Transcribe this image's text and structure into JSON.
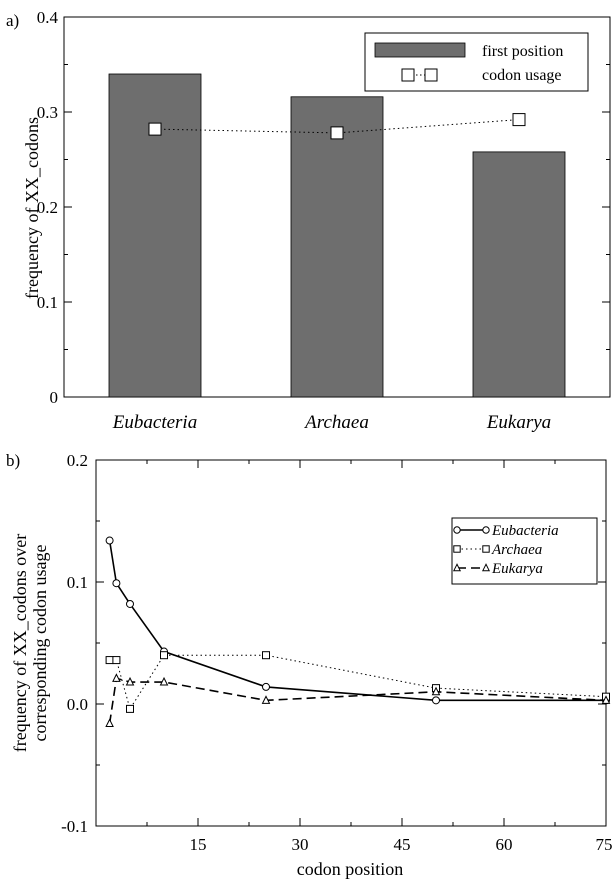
{
  "chart_data": [
    {
      "panel_label": "a)",
      "type": "bar",
      "categories": [
        "Eubacteria",
        "Archaea",
        "Eukarya"
      ],
      "series": [
        {
          "name": "first position",
          "kind": "bar",
          "values": [
            0.34,
            0.316,
            0.258
          ]
        },
        {
          "name": "codon usage",
          "kind": "line-dotted-square",
          "values": [
            0.282,
            0.278,
            0.292
          ]
        }
      ],
      "ylabel": "frequency of XX_codons",
      "xlabel": "",
      "ylim": [
        0,
        0.4
      ],
      "yticks": [
        "0",
        "0.1",
        "0.2",
        "0.3",
        "0.4"
      ],
      "legend": "top-right",
      "colors": {
        "bar": "#6e6e6e",
        "line": "#000000"
      }
    },
    {
      "panel_label": "b)",
      "type": "line",
      "xlabel": "codon position",
      "ylabel_lines": [
        "frequency of XX_codons over",
        "corresponding codon usage"
      ],
      "xlim": [
        0,
        75
      ],
      "ylim": [
        -0.1,
        0.2
      ],
      "xticks": [
        "15",
        "30",
        "45",
        "60",
        "75"
      ],
      "yticks": [
        "-0.1",
        "0.0",
        "0.1",
        "0.2"
      ],
      "legend": "top-right",
      "series": [
        {
          "name": "Eubacteria",
          "marker": "circle",
          "dash": "solid",
          "x": [
            2,
            3,
            5,
            10,
            25,
            50,
            75
          ],
          "y": [
            0.134,
            0.099,
            0.082,
            0.043,
            0.014,
            0.003,
            0.003
          ]
        },
        {
          "name": "Archaea",
          "marker": "square",
          "dash": "dotted",
          "x": [
            2,
            3,
            5,
            10,
            25,
            50,
            75
          ],
          "y": [
            0.036,
            0.036,
            -0.004,
            0.04,
            0.04,
            0.013,
            0.006
          ]
        },
        {
          "name": "Eukarya",
          "marker": "triangle",
          "dash": "dashed",
          "x": [
            2,
            3,
            5,
            10,
            25,
            50,
            75
          ],
          "y": [
            -0.016,
            0.021,
            0.018,
            0.018,
            0.003,
            0.01,
            0.003
          ]
        }
      ]
    }
  ]
}
